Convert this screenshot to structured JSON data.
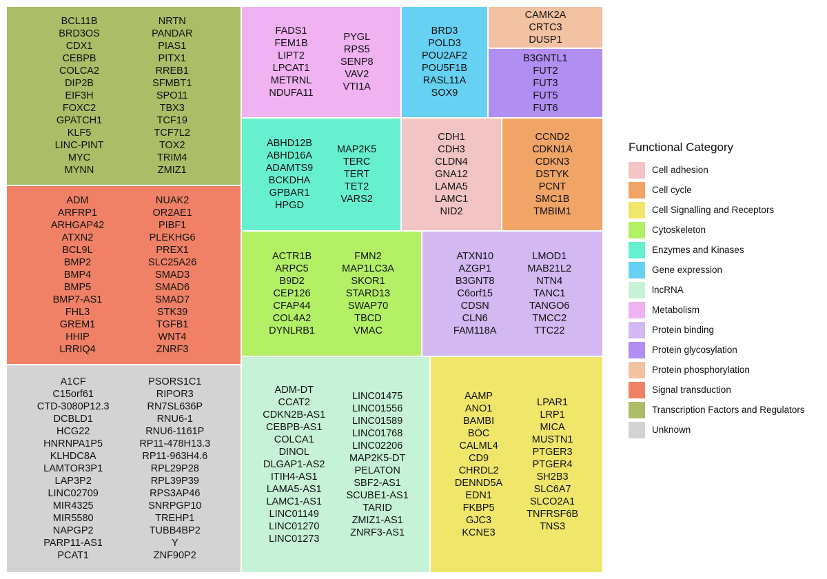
{
  "chart_data": {
    "type": "treemap",
    "legend": {
      "title": "Functional Category",
      "placement": "right",
      "items": [
        {
          "label": "Cell adhesion",
          "color": "#F2C4C4"
        },
        {
          "label": "Cell cycle",
          "color": "#F0A466"
        },
        {
          "label": "Cell Signalling and Receptors",
          "color": "#F0E66A"
        },
        {
          "label": "Cytoskeleton",
          "color": "#B3F066"
        },
        {
          "label": "Enzymes and Kinases",
          "color": "#66F0CF"
        },
        {
          "label": "Gene expression",
          "color": "#66D1F2"
        },
        {
          "label": "lncRNA",
          "color": "#C6F2D8"
        },
        {
          "label": "Metabolism",
          "color": "#F0B2F0"
        },
        {
          "label": "Protein binding",
          "color": "#D3B8F2"
        },
        {
          "label": "Protein glycosylation",
          "color": "#B08EF2"
        },
        {
          "label": "Protein phosphorylation",
          "color": "#F2C2A2"
        },
        {
          "label": "Signal transduction",
          "color": "#F08166"
        },
        {
          "label": "Transcription Factors and Regulators",
          "color": "#ABBD66"
        },
        {
          "label": "Unknown",
          "color": "#D3D3D3"
        }
      ]
    },
    "tiles": [
      {
        "category": "Transcription Factors and Regulators",
        "color": "#ABBD66",
        "columns": [
          [
            "BCL11B",
            "BRD3OS",
            "CDX1",
            "CEBPB",
            "COLCA2",
            "DIP2B",
            "EIF3H",
            "FOXC2",
            "GPATCH1",
            "KLF5",
            "LINC-PINT",
            "MYC",
            "MYNN"
          ],
          [
            "NRTN",
            "PANDAR",
            "PIAS1",
            "PITX1",
            "RREB1",
            "SFMBT1",
            "SPO11",
            "TBX3",
            "TCF19",
            "TCF7L2",
            "TOX2",
            "TRIM4",
            "ZMIZ1"
          ]
        ]
      },
      {
        "category": "Signal transduction",
        "color": "#F08166",
        "columns": [
          [
            "ADM",
            "ARFRP1",
            "ARHGAP42",
            "ATXN2",
            "BCL9L",
            "BMP2",
            "BMP4",
            "BMP5",
            "BMP7-AS1",
            "FHL3",
            "GREM1",
            "HHIP",
            "LRRIQ4"
          ],
          [
            "NUAK2",
            "OR2AE1",
            "PIBF1",
            "PLEKHG6",
            "PREX1",
            "SLC25A26",
            "SMAD3",
            "SMAD6",
            "SMAD7",
            "STK39",
            "TGFB1",
            "WNT4",
            "ZNRF3"
          ]
        ]
      },
      {
        "category": "Unknown",
        "color": "#D3D3D3",
        "columns": [
          [
            "A1CF",
            "C15orf61",
            "CTD-3080P12.3",
            "DCBLD1",
            "HCG22",
            "HNRNPA1P5",
            "KLHDC8A",
            "LAMTOR3P1",
            "LAP3P2",
            "LINC02709",
            "MIR4325",
            "MIR5580",
            "NAPGP2",
            "PARP11-AS1",
            "PCAT1"
          ],
          [
            "PSORS1C1",
            "RIPOR3",
            "RN7SL636P",
            "RNU6-1",
            "RNU6-1161P",
            "RP11-478H13.3",
            "RP11-963H4.6",
            "RPL29P28",
            "RPL39P39",
            "RPS3AP46",
            "SNRPGP10",
            "TREHP1",
            "TUBB4BP2",
            "Y",
            "ZNF90P2"
          ]
        ]
      },
      {
        "category": "Metabolism",
        "color": "#F0B2F0",
        "columns": [
          [
            "FADS1",
            "FEM1B",
            "LIPT2",
            "LPCAT1",
            "METRNL",
            "NDUFA11"
          ],
          [
            "PYGL",
            "RPS5",
            "SENP8",
            "VAV2",
            "VTI1A"
          ]
        ]
      },
      {
        "category": "Gene expression",
        "color": "#66D1F2",
        "columns": [
          [
            "BRD3",
            "POLD3",
            "POU2AF2",
            "POU5F1B",
            "RASL11A",
            "SOX9"
          ]
        ]
      },
      {
        "category": "Protein phosphorylation",
        "color": "#F2C2A2",
        "columns": [
          [
            "CAMK2A",
            "CRTC3",
            "DUSP1"
          ]
        ]
      },
      {
        "category": "Protein glycosylation",
        "color": "#B08EF2",
        "columns": [
          [
            "B3GNTL1",
            "FUT2",
            "FUT3",
            "FUT5",
            "FUT6"
          ]
        ]
      },
      {
        "category": "Enzymes and Kinases",
        "color": "#66F0CF",
        "columns": [
          [
            "ABHD12B",
            "ABHD16A",
            "ADAMTS9",
            "BCKDHA",
            "GPBAR1",
            "HPGD"
          ],
          [
            "MAP2K5",
            "TERC",
            "TERT",
            "TET2",
            "VARS2"
          ]
        ]
      },
      {
        "category": "Cell adhesion",
        "color": "#F2C4C4",
        "columns": [
          [
            "CDH1",
            "CDH3",
            "CLDN4",
            "GNA12",
            "LAMA5",
            "LAMC1",
            "NID2"
          ]
        ]
      },
      {
        "category": "Cell cycle",
        "color": "#F0A466",
        "columns": [
          [
            "CCND2",
            "CDKN1A",
            "CDKN3",
            "DSTYK",
            "PCNT",
            "SMC1B",
            "TMBIM1"
          ]
        ]
      },
      {
        "category": "Cytoskeleton",
        "color": "#B3F066",
        "columns": [
          [
            "ACTR1B",
            "ARPC5",
            "B9D2",
            "CEP126",
            "CFAP44",
            "COL4A2",
            "DYNLRB1"
          ],
          [
            "FMN2",
            "MAP1LC3A",
            "SKOR1",
            "STARD13",
            "SWAP70",
            "TBCD",
            "VMAC"
          ]
        ]
      },
      {
        "category": "Protein binding",
        "color": "#D3B8F2",
        "columns": [
          [
            "ATXN10",
            "AZGP1",
            "B3GNT8",
            "C6orf15",
            "CDSN",
            "CLN6",
            "FAM118A"
          ],
          [
            "LMOD1",
            "MAB21L2",
            "NTN4",
            "TANC1",
            "TANGO6",
            "TMCC2",
            "TTC22"
          ]
        ]
      },
      {
        "category": "lncRNA",
        "color": "#C6F2D8",
        "columns": [
          [
            "ADM-DT",
            "CCAT2",
            "CDKN2B-AS1",
            "CEBPB-AS1",
            "COLCA1",
            "DINOL",
            "DLGAP1-AS2",
            "ITIH4-AS1",
            "LAMA5-AS1",
            "LAMC1-AS1",
            "LINC01149",
            "LINC01270",
            "LINC01273"
          ],
          [
            "LINC01475",
            "LINC01556",
            "LINC01589",
            "LINC01768",
            "LINC02206",
            "MAP2K5-DT",
            "PELATON",
            "SBF2-AS1",
            "SCUBE1-AS1",
            "TARID",
            "ZMIZ1-AS1",
            "ZNRF3-AS1"
          ]
        ]
      },
      {
        "category": "Cell Signalling and Receptors",
        "color": "#F0E66A",
        "columns": [
          [
            "AAMP",
            "ANO1",
            "BAMBI",
            "BOC",
            "CALML4",
            "CD9",
            "CHRDL2",
            "DENND5A",
            "EDN1",
            "FKBP5",
            "GJC3",
            "KCNE3"
          ],
          [
            "LPAR1",
            "LRP1",
            "MICA",
            "MUSTN1",
            "PTGER3",
            "PTGER4",
            "SH2B3",
            "SLC6A7",
            "SLCO2A1",
            "TNFRSF6B",
            "TNS3"
          ]
        ]
      }
    ]
  }
}
